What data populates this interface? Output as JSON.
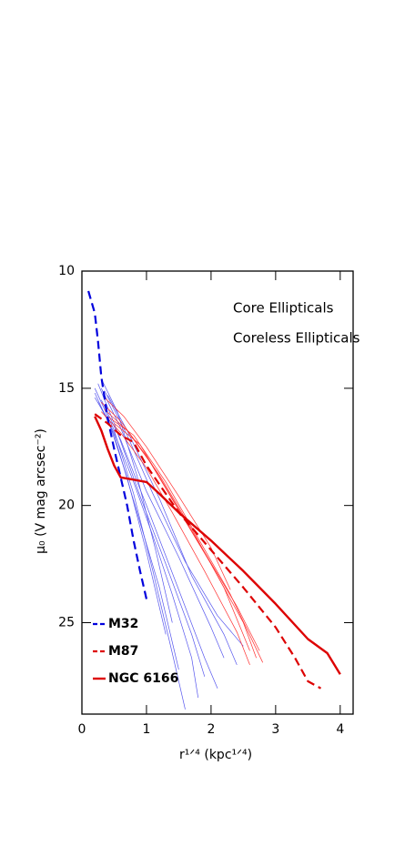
{
  "chart_data": {
    "type": "line",
    "xlabel": "r¹ᐟ⁴  (kpc¹ᐟ⁴)",
    "ylabel": "μ₀  (V mag arcsec⁻²)",
    "xlim": [
      0,
      4.2
    ],
    "ylim": [
      10,
      28.9
    ],
    "y_inverted": true,
    "xticks": [
      0,
      1,
      2,
      3,
      4
    ],
    "yticks": [
      10,
      15,
      20,
      25
    ],
    "annotations": [
      {
        "text": "Core Ellipticals",
        "color": "#ff0000"
      },
      {
        "text": "Coreless Ellipticals",
        "color": "#0000ff"
      }
    ],
    "series": [
      {
        "color": "#5555ee",
        "linestyle": "solid",
        "linewidth": 0.7,
        "x": [
          0.2,
          0.5,
          0.8,
          1.1,
          1.4,
          1.6
        ],
        "values": [
          15.0,
          16.8,
          19.5,
          22.8,
          26.3,
          28.7
        ]
      },
      {
        "color": "#5555ee",
        "linestyle": "solid",
        "linewidth": 0.7,
        "x": [
          0.2,
          0.5,
          0.8,
          1.2,
          1.5
        ],
        "values": [
          15.2,
          17.0,
          19.8,
          23.5,
          27.0
        ]
      },
      {
        "color": "#5555ee",
        "linestyle": "solid",
        "linewidth": 0.7,
        "x": [
          0.25,
          0.5,
          0.9,
          1.3,
          1.7,
          1.9
        ],
        "values": [
          14.8,
          16.5,
          19.6,
          22.5,
          25.5,
          27.3
        ]
      },
      {
        "color": "#5555ee",
        "linestyle": "solid",
        "linewidth": 0.7,
        "x": [
          0.3,
          0.6,
          1.0,
          1.5,
          2.0,
          2.2
        ],
        "values": [
          15.0,
          16.7,
          19.4,
          22.2,
          25.2,
          26.5
        ]
      },
      {
        "color": "#5555ee",
        "linestyle": "solid",
        "linewidth": 0.7,
        "x": [
          0.3,
          0.6,
          1.0,
          1.5,
          1.9,
          2.1
        ],
        "values": [
          15.5,
          17.2,
          20.0,
          23.6,
          26.5,
          27.8
        ]
      },
      {
        "color": "#5555ee",
        "linestyle": "solid",
        "linewidth": 0.7,
        "x": [
          0.35,
          0.7,
          1.1,
          1.6,
          2.1,
          2.5
        ],
        "values": [
          15.1,
          17.0,
          19.5,
          22.4,
          24.7,
          26.0
        ]
      },
      {
        "color": "#5555ee",
        "linestyle": "solid",
        "linewidth": 0.7,
        "x": [
          0.2,
          0.4,
          0.7,
          1.0,
          1.3
        ],
        "values": [
          15.4,
          16.3,
          18.8,
          22.0,
          25.5
        ]
      },
      {
        "color": "#5555ee",
        "linestyle": "solid",
        "linewidth": 0.7,
        "x": [
          0.4,
          0.7,
          1.2,
          1.7,
          2.2,
          2.4
        ],
        "values": [
          15.3,
          16.8,
          19.7,
          23.0,
          25.5,
          26.8
        ]
      },
      {
        "color": "#5555ee",
        "linestyle": "solid",
        "linewidth": 0.7,
        "x": [
          0.25,
          0.5,
          0.8,
          1.1,
          1.4,
          1.7,
          1.8
        ],
        "values": [
          15.6,
          16.9,
          19.0,
          21.3,
          23.8,
          26.5,
          28.2
        ]
      },
      {
        "color": "#5555ee",
        "linestyle": "solid",
        "linewidth": 0.7,
        "x": [
          0.3,
          0.55,
          0.85,
          1.15,
          1.4
        ],
        "values": [
          14.6,
          16.0,
          18.7,
          22.0,
          25.0
        ]
      },
      {
        "color": "#ff3030",
        "linestyle": "solid",
        "linewidth": 0.7,
        "x": [
          0.3,
          0.6,
          1.0,
          1.5,
          2.0,
          2.5,
          2.7
        ],
        "values": [
          15.6,
          16.4,
          17.9,
          20.2,
          22.5,
          25.0,
          26.5
        ]
      },
      {
        "color": "#ff3030",
        "linestyle": "solid",
        "linewidth": 0.7,
        "x": [
          0.35,
          0.7,
          1.2,
          1.7,
          2.2,
          2.6
        ],
        "values": [
          15.9,
          16.8,
          18.7,
          21.0,
          23.5,
          26.2
        ]
      },
      {
        "color": "#ff3030",
        "linestyle": "solid",
        "linewidth": 0.7,
        "x": [
          0.4,
          0.8,
          1.3,
          1.8,
          2.3,
          2.8
        ],
        "values": [
          16.2,
          17.0,
          19.0,
          21.4,
          23.8,
          26.7
        ]
      },
      {
        "color": "#ff3030",
        "linestyle": "solid",
        "linewidth": 0.7,
        "x": [
          0.3,
          0.6,
          1.0,
          1.4,
          1.9,
          2.4,
          2.6
        ],
        "values": [
          16.0,
          16.9,
          18.4,
          20.3,
          22.8,
          25.4,
          26.8
        ]
      },
      {
        "color": "#ff3030",
        "linestyle": "solid",
        "linewidth": 0.7,
        "x": [
          0.5,
          0.9,
          1.4,
          1.9,
          2.4,
          2.75
        ],
        "values": [
          16.5,
          17.4,
          19.7,
          22.0,
          24.3,
          26.2
        ]
      },
      {
        "color": "#ff3030",
        "linestyle": "solid",
        "linewidth": 0.7,
        "x": [
          0.35,
          0.65,
          1.0,
          1.5,
          2.0,
          2.3
        ],
        "values": [
          15.4,
          16.2,
          17.5,
          19.6,
          21.8,
          23.6
        ]
      },
      {
        "name": "M32",
        "color": "#0000dd",
        "linestyle": "dashed",
        "linewidth": 2.2,
        "x": [
          0.1,
          0.2,
          0.25,
          0.3,
          0.4,
          0.5,
          0.6,
          0.7,
          0.8,
          0.9,
          1.0
        ],
        "values": [
          10.85,
          11.8,
          13.0,
          14.5,
          16.3,
          17.6,
          18.8,
          20.0,
          21.5,
          22.8,
          24.0
        ]
      },
      {
        "name": "M87",
        "color": "#dd0000",
        "linestyle": "dashed",
        "linewidth": 2.2,
        "x": [
          0.2,
          0.4,
          0.6,
          0.8,
          1.0,
          1.5,
          2.0,
          2.5,
          3.0,
          3.3,
          3.5,
          3.7
        ],
        "values": [
          16.1,
          16.5,
          17.0,
          17.3,
          18.3,
          20.3,
          21.9,
          23.5,
          25.2,
          26.5,
          27.5,
          27.8
        ]
      },
      {
        "name": "NGC 6166",
        "color": "#dd0000",
        "linestyle": "solid",
        "linewidth": 2.4,
        "x": [
          0.2,
          0.3,
          0.4,
          0.5,
          0.6,
          0.8,
          1.0,
          1.2,
          1.5,
          2.0,
          2.5,
          3.0,
          3.5,
          3.8,
          4.0
        ],
        "values": [
          16.2,
          16.8,
          17.6,
          18.3,
          18.8,
          18.9,
          19.0,
          19.5,
          20.3,
          21.5,
          22.8,
          24.2,
          25.7,
          26.3,
          27.2
        ]
      }
    ]
  }
}
